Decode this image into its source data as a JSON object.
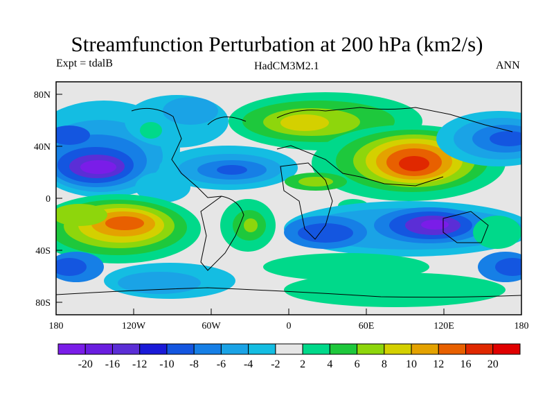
{
  "title": "Streamfunction Perturbation at 200 hPa (km2/s)",
  "left_label": "Expt = tdalB",
  "center_label": "HadCM3M2.1",
  "right_label": "ANN",
  "y_ticks": [
    "80N",
    "40N",
    "0",
    "40S",
    "80S"
  ],
  "x_ticks": [
    "180",
    "120W",
    "60W",
    "0",
    "60E",
    "120E",
    "180"
  ],
  "colorbar_labels": [
    "-20",
    "-16",
    "-12",
    "-10",
    "-8",
    "-6",
    "-4",
    "-2",
    "2",
    "4",
    "6",
    "8",
    "10",
    "12",
    "16",
    "20"
  ],
  "colorbar_colors": [
    "#7a1de8",
    "#6a1ee0",
    "#5b2ed6",
    "#1a1ad8",
    "#1456e0",
    "#167fe6",
    "#1aa3e6",
    "#14bde2",
    "#e6e6e6",
    "#00d98a",
    "#1ec83c",
    "#8ed60c",
    "#d4d000",
    "#e4a200",
    "#e86000",
    "#e02800",
    "#e00000"
  ]
}
